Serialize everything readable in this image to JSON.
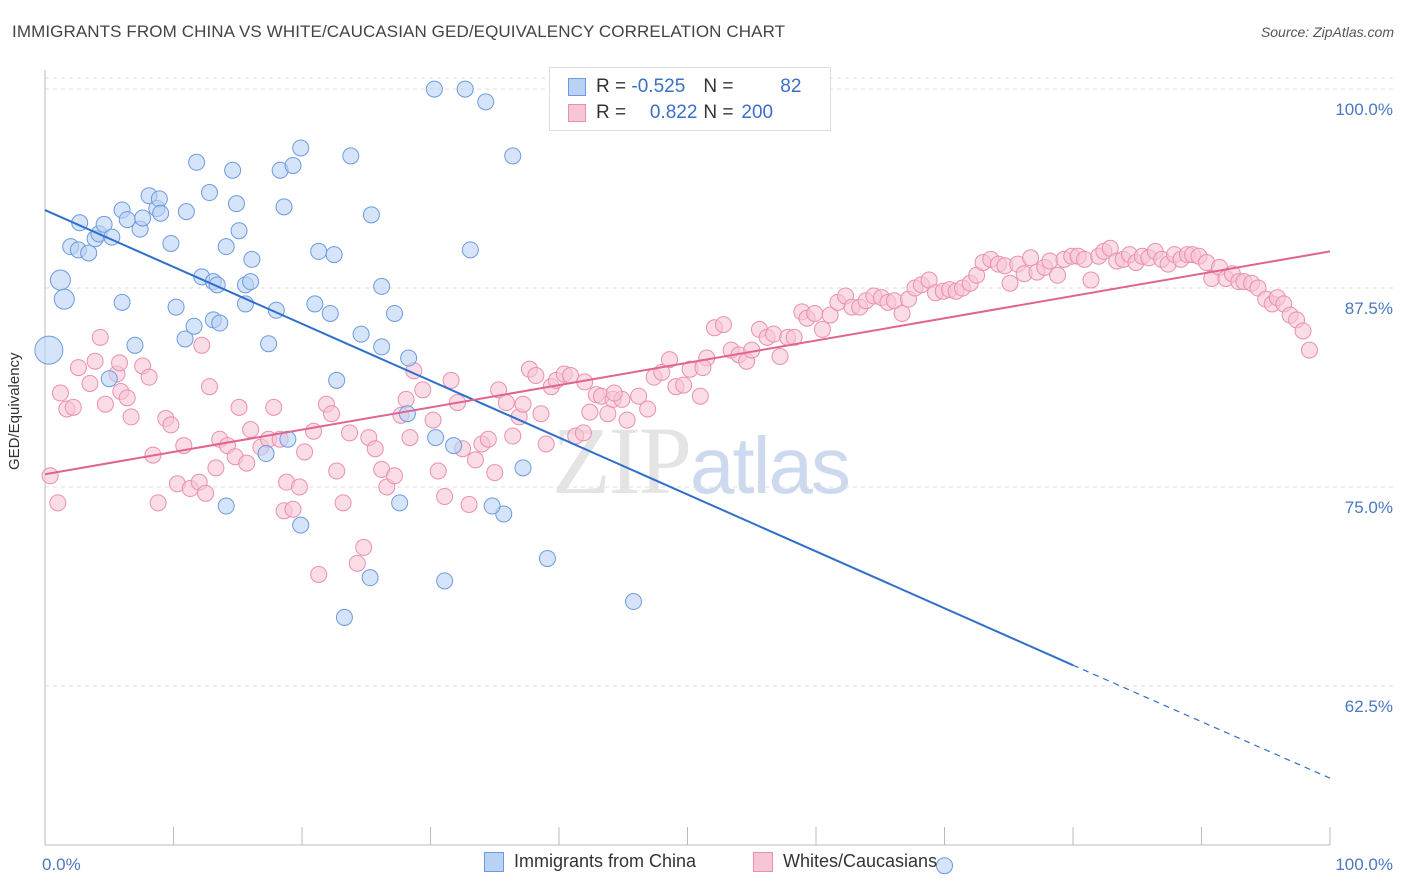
{
  "header": {
    "title": "IMMIGRANTS FROM CHINA VS WHITE/CAUCASIAN GED/EQUIVALENCY CORRELATION CHART",
    "source": "Source: ZipAtlas.com"
  },
  "watermark": {
    "zip": "ZIP",
    "atlas": "atlas"
  },
  "legend": {
    "row1": {
      "r_label": "R =",
      "r_value": "-0.525",
      "n_label": "N =",
      "n_value": "82"
    },
    "row2": {
      "r_label": "R =",
      "r_value": "0.822",
      "n_label": "N =",
      "n_value": "200"
    }
  },
  "bottom_legend": {
    "china": "Immigrants from China",
    "white": "Whites/Caucasians"
  },
  "chart_data": {
    "type": "scatter",
    "ylabel": "GED/Equivalency",
    "xlim": [
      0,
      100
    ],
    "ylim": [
      52.5,
      101.2
    ],
    "x_tick_labels": [
      "0.0%",
      "100.0%"
    ],
    "y_ticks": [
      {
        "value": 100.0,
        "label": "100.0%"
      },
      {
        "value": 87.5,
        "label": "87.5%"
      },
      {
        "value": 75.0,
        "label": "75.0%"
      },
      {
        "value": 62.5,
        "label": "62.5%"
      }
    ],
    "colors": {
      "china_fill": "#b9d2f3",
      "china_stroke": "#6c9ae0",
      "china_line": "#2f6fcc",
      "white_fill": "#f6c5d6",
      "white_stroke": "#eb8fb0",
      "white_line": "#e0648e"
    },
    "series": [
      {
        "name": "Immigrants from China",
        "r": -0.525,
        "n": 82,
        "trend": {
          "x0": 0,
          "y0": 92.4,
          "x1": 80,
          "y1": 63.8,
          "dash_to_x": 100,
          "dash_to_y": 56.7
        },
        "points": [
          [
            0.3,
            83.6,
            14
          ],
          [
            1.2,
            88.0,
            10
          ],
          [
            1.5,
            86.8,
            10
          ],
          [
            2.0,
            90.1,
            8
          ],
          [
            2.6,
            89.9,
            8
          ],
          [
            2.7,
            91.6,
            8
          ],
          [
            3.4,
            89.7,
            8
          ],
          [
            3.9,
            90.6,
            8
          ],
          [
            4.2,
            90.9,
            8
          ],
          [
            4.6,
            91.5,
            8
          ],
          [
            5.2,
            90.7,
            8
          ],
          [
            6.0,
            92.4,
            8
          ],
          [
            6.4,
            91.8,
            8
          ],
          [
            7.4,
            91.2,
            8
          ],
          [
            7.6,
            91.9,
            8
          ],
          [
            8.1,
            93.3,
            8
          ],
          [
            8.7,
            92.5,
            8
          ],
          [
            8.9,
            93.1,
            8
          ],
          [
            9.0,
            92.2,
            8
          ],
          [
            9.8,
            90.3,
            8
          ],
          [
            10.2,
            86.3,
            8
          ],
          [
            11.0,
            92.3,
            8
          ],
          [
            10.9,
            84.3,
            8
          ],
          [
            11.6,
            85.1,
            8
          ],
          [
            11.8,
            95.4,
            8
          ],
          [
            12.2,
            88.2,
            8
          ],
          [
            12.8,
            93.5,
            8
          ],
          [
            13.1,
            87.9,
            8
          ],
          [
            13.4,
            87.7,
            8
          ],
          [
            13.1,
            85.5,
            8
          ],
          [
            13.6,
            85.3,
            8
          ],
          [
            14.1,
            90.1,
            8
          ],
          [
            14.6,
            94.9,
            8
          ],
          [
            14.9,
            92.8,
            8
          ],
          [
            15.1,
            91.1,
            8
          ],
          [
            16.1,
            89.3,
            8
          ],
          [
            15.6,
            86.5,
            8
          ],
          [
            15.6,
            87.7,
            8
          ],
          [
            16.0,
            87.9,
            8
          ],
          [
            18.0,
            86.1,
            8
          ],
          [
            17.4,
            84.0,
            8
          ],
          [
            18.3,
            94.9,
            8
          ],
          [
            18.6,
            92.6,
            8
          ],
          [
            19.3,
            95.2,
            8
          ],
          [
            19.9,
            96.3,
            8
          ],
          [
            21.0,
            86.5,
            8
          ],
          [
            21.3,
            89.8,
            8
          ],
          [
            22.5,
            89.6,
            8
          ],
          [
            22.2,
            85.9,
            8
          ],
          [
            22.7,
            81.7,
            8
          ],
          [
            23.8,
            95.8,
            8
          ],
          [
            24.6,
            84.6,
            8
          ],
          [
            25.4,
            92.1,
            8
          ],
          [
            26.2,
            87.6,
            8
          ],
          [
            27.2,
            85.9,
            8
          ],
          [
            28.3,
            83.1,
            8
          ],
          [
            30.3,
            100.0,
            8
          ],
          [
            32.7,
            100.0,
            8
          ],
          [
            34.3,
            99.2,
            8
          ],
          [
            33.1,
            89.9,
            8
          ],
          [
            36.4,
            95.8,
            8
          ],
          [
            28.2,
            79.6,
            8
          ],
          [
            30.4,
            78.1,
            8
          ],
          [
            31.8,
            77.6,
            8
          ],
          [
            35.7,
            73.3,
            8
          ],
          [
            37.2,
            76.2,
            8
          ],
          [
            39.1,
            70.5,
            8
          ],
          [
            45.8,
            67.8,
            8
          ],
          [
            31.1,
            69.1,
            8
          ],
          [
            23.3,
            66.8,
            8
          ],
          [
            25.3,
            69.3,
            8
          ],
          [
            19.9,
            72.6,
            8
          ],
          [
            18.9,
            78.0,
            8
          ],
          [
            17.2,
            77.1,
            8
          ],
          [
            14.1,
            73.8,
            8
          ],
          [
            6.0,
            86.6,
            8
          ],
          [
            5.0,
            81.8,
            8
          ],
          [
            7.0,
            83.9,
            8
          ],
          [
            26.2,
            83.8,
            8
          ],
          [
            34.8,
            73.8,
            8
          ],
          [
            70.0,
            51.2,
            8
          ],
          [
            27.6,
            74.0,
            8
          ]
        ]
      },
      {
        "name": "Whites/Caucasians",
        "r": 0.822,
        "n": 200,
        "trend": {
          "x0": 0,
          "y0": 75.8,
          "x1": 100,
          "y1": 89.8
        },
        "points": [
          [
            0.4,
            75.7
          ],
          [
            1.0,
            74.0
          ],
          [
            1.2,
            80.9
          ],
          [
            1.7,
            79.9
          ],
          [
            2.2,
            80.0
          ],
          [
            2.6,
            82.5
          ],
          [
            3.5,
            81.5
          ],
          [
            3.9,
            82.9
          ],
          [
            4.3,
            84.4
          ],
          [
            4.7,
            80.2
          ],
          [
            5.6,
            82.1
          ],
          [
            5.9,
            81.0
          ],
          [
            5.8,
            82.8
          ],
          [
            6.4,
            80.6
          ],
          [
            6.7,
            79.4
          ],
          [
            7.6,
            82.6
          ],
          [
            8.1,
            81.9
          ],
          [
            8.4,
            77.0
          ],
          [
            8.8,
            74.0
          ],
          [
            9.4,
            79.3
          ],
          [
            9.8,
            78.9
          ],
          [
            10.3,
            75.2
          ],
          [
            10.8,
            77.6
          ],
          [
            11.3,
            74.9
          ],
          [
            12.0,
            75.3
          ],
          [
            12.2,
            83.9
          ],
          [
            12.5,
            74.6
          ],
          [
            12.8,
            81.3
          ],
          [
            13.3,
            76.2
          ],
          [
            13.6,
            78.0
          ],
          [
            14.2,
            77.6
          ],
          [
            14.8,
            76.9
          ],
          [
            15.1,
            80.0
          ],
          [
            15.7,
            76.5
          ],
          [
            16.0,
            78.6
          ],
          [
            16.8,
            77.5
          ],
          [
            17.4,
            78.0
          ],
          [
            17.8,
            80.0
          ],
          [
            18.3,
            78.0
          ],
          [
            18.6,
            73.5
          ],
          [
            18.8,
            75.3
          ],
          [
            19.3,
            73.6
          ],
          [
            19.8,
            75.0
          ],
          [
            20.2,
            77.2
          ],
          [
            20.9,
            78.5
          ],
          [
            21.3,
            69.5
          ],
          [
            21.9,
            80.2
          ],
          [
            22.3,
            79.6
          ],
          [
            22.7,
            76.0
          ],
          [
            23.2,
            74.0
          ],
          [
            23.7,
            78.4
          ],
          [
            24.3,
            70.2
          ],
          [
            24.8,
            71.2
          ],
          [
            25.2,
            78.1
          ],
          [
            25.7,
            77.4
          ],
          [
            26.2,
            76.1
          ],
          [
            26.6,
            75.0
          ],
          [
            27.2,
            75.7
          ],
          [
            27.7,
            79.5
          ],
          [
            28.1,
            80.5
          ],
          [
            28.4,
            78.1
          ],
          [
            28.7,
            82.3
          ],
          [
            29.4,
            81.1
          ],
          [
            30.2,
            79.2
          ],
          [
            30.6,
            76.0
          ],
          [
            31.1,
            74.4
          ],
          [
            31.6,
            81.7
          ],
          [
            32.1,
            80.3
          ],
          [
            32.5,
            77.4
          ],
          [
            33.0,
            73.9
          ],
          [
            33.5,
            76.7
          ],
          [
            34.0,
            77.7
          ],
          [
            34.5,
            78.0
          ],
          [
            35.0,
            75.9
          ],
          [
            35.3,
            81.1
          ],
          [
            35.9,
            80.3
          ],
          [
            36.4,
            78.2
          ],
          [
            36.9,
            79.4
          ],
          [
            37.2,
            80.2
          ],
          [
            37.7,
            82.4
          ],
          [
            38.2,
            82.0
          ],
          [
            38.6,
            79.6
          ],
          [
            39.0,
            77.7
          ],
          [
            39.4,
            81.3
          ],
          [
            39.8,
            81.7
          ],
          [
            40.4,
            82.1
          ],
          [
            40.9,
            82.0
          ],
          [
            41.3,
            78.2
          ],
          [
            41.9,
            78.4
          ],
          [
            42.4,
            79.7
          ],
          [
            42.9,
            80.8
          ],
          [
            43.3,
            80.7
          ],
          [
            43.8,
            79.6
          ],
          [
            44.2,
            80.5
          ],
          [
            44.9,
            80.5
          ],
          [
            45.3,
            79.2
          ],
          [
            46.2,
            80.7
          ],
          [
            46.9,
            79.9
          ],
          [
            47.4,
            81.9
          ],
          [
            48.0,
            82.2
          ],
          [
            48.6,
            83.0
          ],
          [
            49.1,
            81.3
          ],
          [
            49.7,
            81.4
          ],
          [
            50.2,
            82.4
          ],
          [
            51.0,
            80.7
          ],
          [
            51.5,
            83.1
          ],
          [
            52.1,
            85.0
          ],
          [
            52.8,
            85.2
          ],
          [
            53.4,
            83.6
          ],
          [
            54.0,
            83.3
          ],
          [
            54.6,
            82.9
          ],
          [
            55.0,
            83.6
          ],
          [
            55.6,
            84.9
          ],
          [
            56.2,
            84.4
          ],
          [
            56.7,
            84.6
          ],
          [
            57.2,
            83.2
          ],
          [
            57.8,
            84.4
          ],
          [
            58.3,
            84.4
          ],
          [
            58.9,
            86.0
          ],
          [
            59.3,
            85.6
          ],
          [
            59.9,
            85.9
          ],
          [
            60.5,
            84.9
          ],
          [
            61.1,
            85.8
          ],
          [
            61.7,
            86.6
          ],
          [
            62.3,
            87.0
          ],
          [
            62.8,
            86.3
          ],
          [
            63.4,
            86.3
          ],
          [
            63.9,
            86.7
          ],
          [
            64.5,
            87.0
          ],
          [
            65.1,
            86.9
          ],
          [
            65.6,
            86.6
          ],
          [
            66.1,
            86.7
          ],
          [
            66.7,
            85.9
          ],
          [
            67.2,
            86.8
          ],
          [
            67.7,
            87.5
          ],
          [
            68.2,
            87.7
          ],
          [
            68.8,
            88.0
          ],
          [
            69.3,
            87.2
          ],
          [
            69.9,
            87.3
          ],
          [
            70.4,
            87.4
          ],
          [
            70.9,
            87.3
          ],
          [
            71.4,
            87.5
          ],
          [
            72.0,
            87.8
          ],
          [
            72.5,
            88.3
          ],
          [
            73.0,
            89.1
          ],
          [
            73.6,
            89.3
          ],
          [
            74.2,
            89.0
          ],
          [
            74.7,
            88.9
          ],
          [
            75.1,
            87.8
          ],
          [
            75.7,
            89.0
          ],
          [
            76.2,
            88.4
          ],
          [
            76.7,
            89.4
          ],
          [
            77.2,
            88.5
          ],
          [
            77.8,
            88.8
          ],
          [
            78.2,
            89.2
          ],
          [
            78.8,
            88.3
          ],
          [
            79.3,
            89.3
          ],
          [
            79.9,
            89.5
          ],
          [
            80.4,
            89.5
          ],
          [
            80.9,
            89.3
          ],
          [
            81.4,
            88.0
          ],
          [
            82.0,
            89.5
          ],
          [
            82.4,
            89.8
          ],
          [
            82.9,
            90.0
          ],
          [
            83.4,
            89.2
          ],
          [
            83.9,
            89.3
          ],
          [
            84.4,
            89.6
          ],
          [
            84.9,
            89.1
          ],
          [
            85.4,
            89.5
          ],
          [
            85.9,
            89.4
          ],
          [
            86.4,
            89.8
          ],
          [
            86.9,
            89.3
          ],
          [
            87.4,
            89.0
          ],
          [
            87.9,
            89.6
          ],
          [
            88.4,
            89.3
          ],
          [
            88.9,
            89.6
          ],
          [
            89.3,
            89.6
          ],
          [
            89.8,
            89.5
          ],
          [
            90.4,
            89.1
          ],
          [
            90.8,
            88.1
          ],
          [
            91.4,
            88.8
          ],
          [
            91.9,
            88.1
          ],
          [
            92.4,
            88.4
          ],
          [
            92.9,
            87.9
          ],
          [
            93.3,
            87.9
          ],
          [
            93.9,
            87.8
          ],
          [
            94.4,
            87.5
          ],
          [
            95.0,
            86.8
          ],
          [
            95.5,
            86.5
          ],
          [
            95.9,
            86.9
          ],
          [
            96.4,
            86.5
          ],
          [
            96.9,
            85.8
          ],
          [
            97.4,
            85.5
          ],
          [
            97.9,
            84.8
          ],
          [
            98.4,
            83.6
          ],
          [
            44.3,
            80.9
          ],
          [
            51.2,
            82.5
          ],
          [
            42.0,
            81.6
          ]
        ]
      }
    ]
  }
}
